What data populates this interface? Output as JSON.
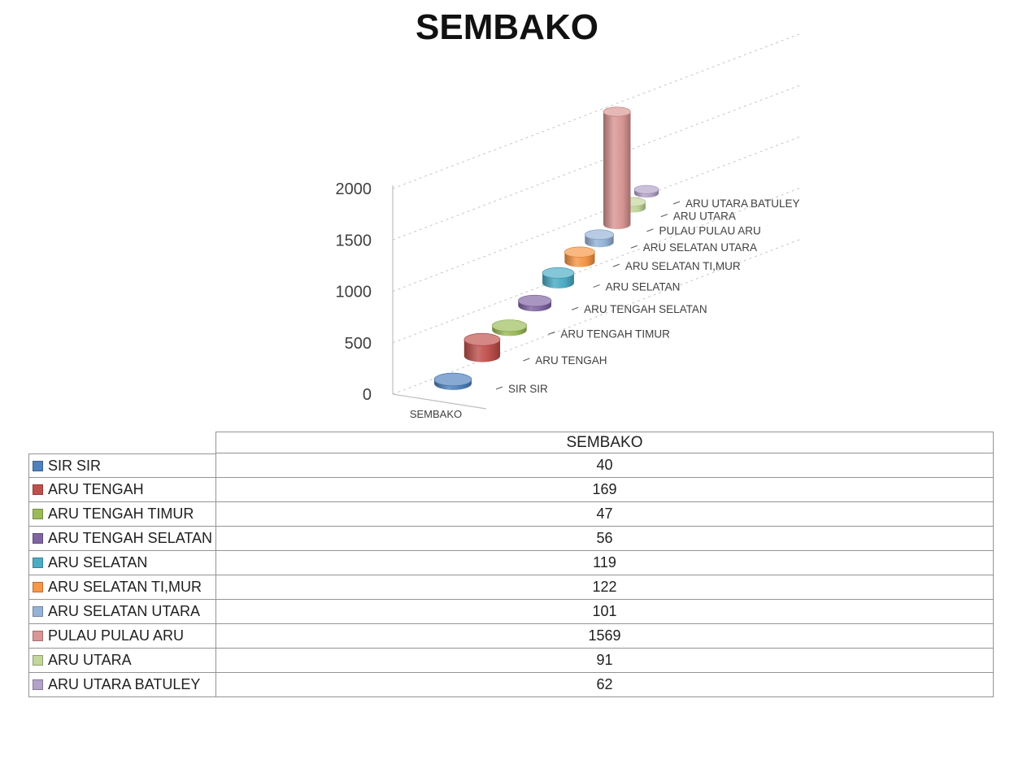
{
  "title": "SEMBAKO",
  "chart_data": {
    "type": "bar",
    "subtype": "cylinder-3d",
    "title": "SEMBAKO",
    "series_label": "SEMBAKO",
    "categories": [
      "SIR SIR",
      "ARU TENGAH",
      "ARU TENGAH TIMUR",
      "ARU TENGAH SELATAN",
      "ARU SELATAN",
      "ARU SELATAN TI,MUR",
      "ARU SELATAN UTARA",
      "PULAU PULAU ARU",
      "ARU UTARA",
      "ARU UTARA BATULEY"
    ],
    "values": [
      40,
      169,
      47,
      56,
      119,
      122,
      101,
      1569,
      91,
      62
    ],
    "colors": [
      "#4F81BD",
      "#C0504D",
      "#9BBB59",
      "#8064A2",
      "#4BACC6",
      "#F79646",
      "#95B3D7",
      "#D99694",
      "#C3D69B",
      "#B3A2C7"
    ],
    "yticks": [
      0,
      500,
      1000,
      1500,
      2000
    ],
    "ylim": [
      0,
      2000
    ],
    "xlabel": "",
    "ylabel": "",
    "grid": "dashed",
    "legend_position": "data-table"
  },
  "table": {
    "header": "SEMBAKO",
    "rows": [
      {
        "label": "SIR SIR",
        "value": "40"
      },
      {
        "label": "ARU TENGAH",
        "value": "169"
      },
      {
        "label": "ARU TENGAH TIMUR",
        "value": "47"
      },
      {
        "label": "ARU TENGAH SELATAN",
        "value": "56"
      },
      {
        "label": "ARU SELATAN",
        "value": "119"
      },
      {
        "label": "ARU SELATAN TI,MUR",
        "value": "122"
      },
      {
        "label": "ARU SELATAN UTARA",
        "value": "101"
      },
      {
        "label": "PULAU PULAU ARU",
        "value": "1569"
      },
      {
        "label": "ARU UTARA",
        "value": "91"
      },
      {
        "label": "ARU UTARA BATULEY",
        "value": "62"
      }
    ]
  },
  "colors": {
    "background": "#ffffff",
    "axis_text": "#404040",
    "gridline": "#c8c8c8",
    "axis_line": "#bfbfbf",
    "table_border": "#949494",
    "text": "#212121"
  }
}
